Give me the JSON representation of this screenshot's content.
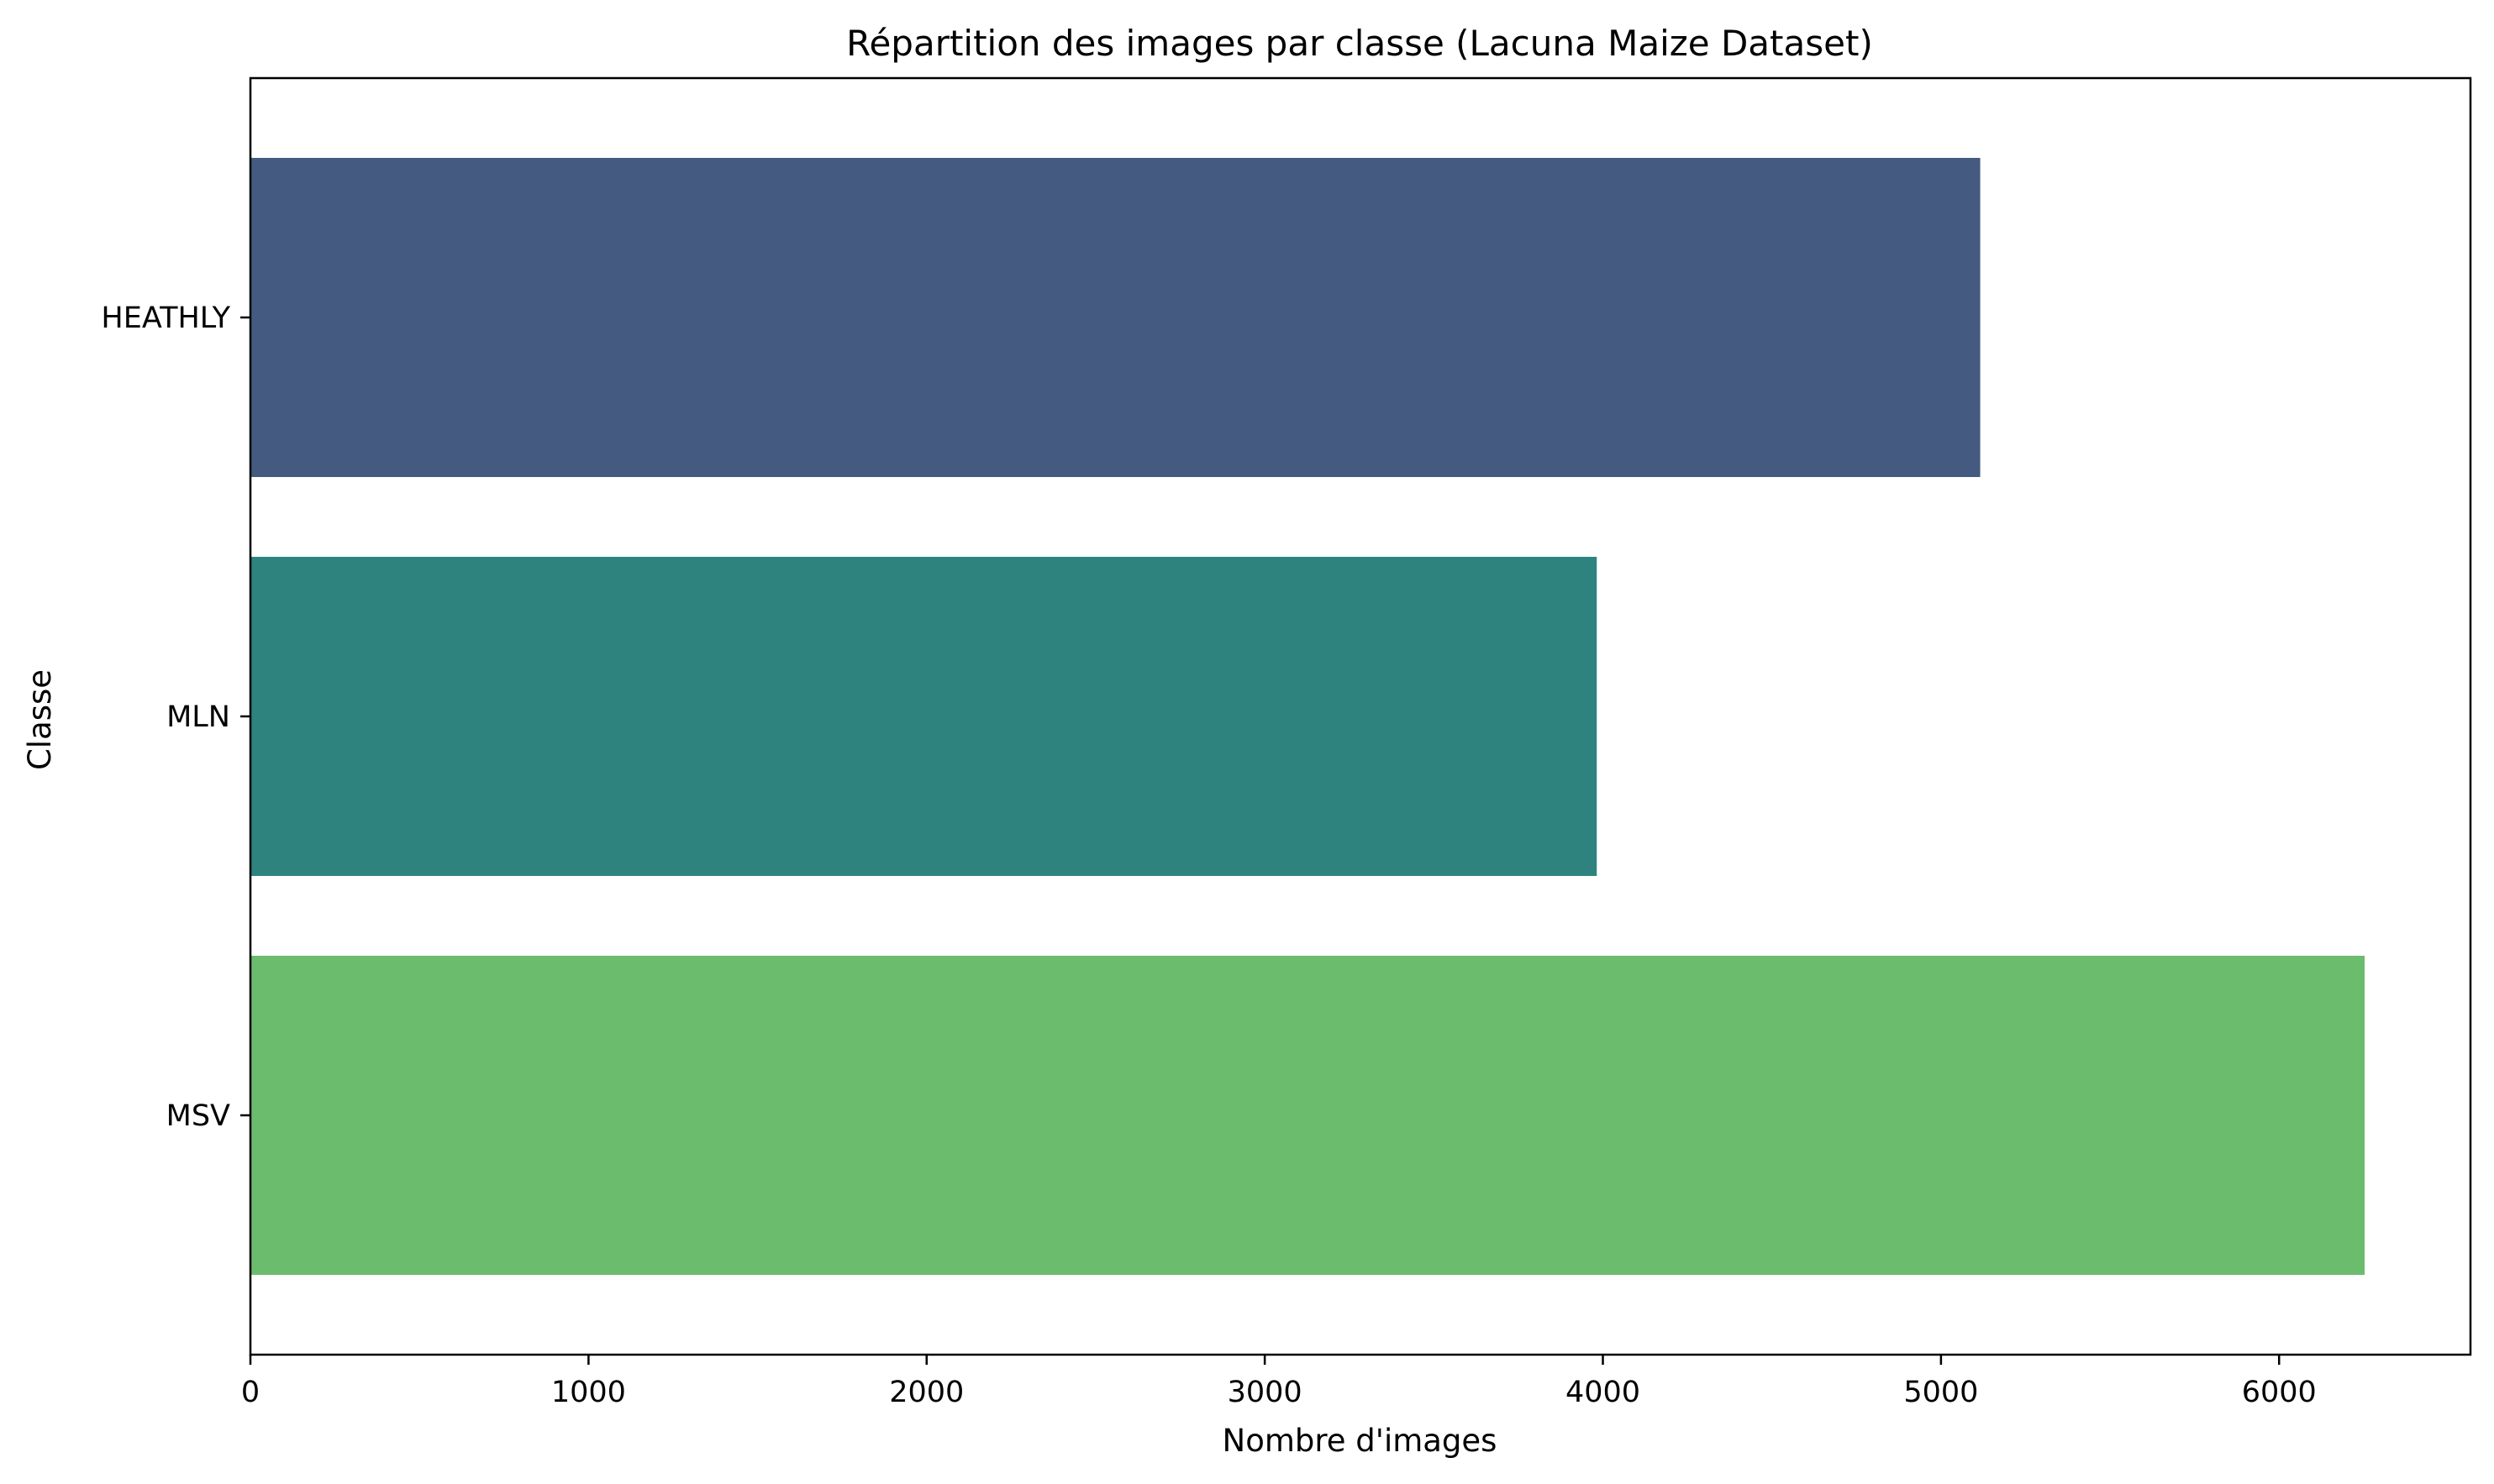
{
  "chart_data": {
    "type": "bar",
    "orientation": "horizontal",
    "title": "Répartition des images par classe (Lacuna Maize Dataset)",
    "xlabel": "Nombre d'images",
    "ylabel": "Classe",
    "categories": [
      "HEATHLY",
      "MLN",
      "MSV"
    ],
    "values": [
      5116,
      3982,
      6253
    ],
    "colors": [
      "#455a80",
      "#2e837e",
      "#6cbc6d"
    ],
    "xlim": [
      0,
      6566
    ],
    "xticks": [
      0,
      1000,
      2000,
      3000,
      4000,
      5000,
      6000
    ],
    "grid": false,
    "legend": "none"
  }
}
